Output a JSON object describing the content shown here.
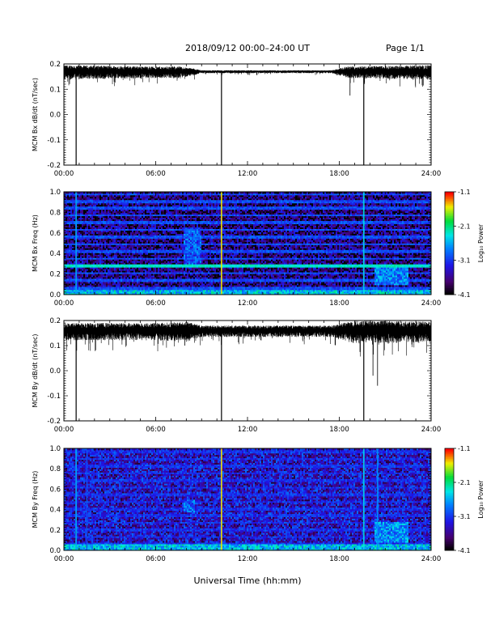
{
  "header": {
    "title": "2018/09/12   00:00–24:00 UT",
    "page": "Page 1/1"
  },
  "xaxis_label": "Universal Time (hh:mm)",
  "colors": {
    "trace": "#000000",
    "frame": "#000000",
    "background": "#ffffff"
  },
  "chart_data": [
    {
      "type": "line",
      "ylabel": "MCM Bx dB/dt (nT/sec)",
      "x_ticks": [
        "00:00",
        "06:00",
        "12:00",
        "18:00",
        "24:00"
      ],
      "xlim": [
        0,
        24
      ],
      "ylim": [
        -0.2,
        0.2
      ],
      "y_ticks": [
        "0.2",
        "0.1",
        "0.0",
        "-0.1",
        "-0.2"
      ],
      "y_tick_values": [
        0.2,
        0.1,
        0.0,
        -0.1,
        -0.2
      ],
      "baseline": 0.17,
      "noise_amplitude": [
        [
          0,
          0.025
        ],
        [
          6,
          0.02
        ],
        [
          7.5,
          0.02
        ],
        [
          8.5,
          0.012
        ],
        [
          9,
          0.005
        ],
        [
          17.5,
          0.005
        ],
        [
          18.5,
          0.02
        ],
        [
          24,
          0.025
        ]
      ],
      "spikes": [
        {
          "x": 0.8,
          "y": -0.2
        },
        {
          "x": 10.3,
          "y": -0.2
        },
        {
          "x": 19.6,
          "y": -0.2
        },
        {
          "x": 18.7,
          "y": 0.075
        }
      ]
    },
    {
      "type": "heatmap",
      "ylabel": "MCM Bx Freq (Hz)",
      "x_ticks": [
        "00:00",
        "06:00",
        "12:00",
        "18:00",
        "24:00"
      ],
      "xlim": [
        0,
        24
      ],
      "ylim": [
        0,
        1.0
      ],
      "y_ticks": [
        "1.0",
        "0.8",
        "0.6",
        "0.4",
        "0.2",
        "0.0"
      ],
      "y_tick_values": [
        1.0,
        0.8,
        0.6,
        0.4,
        0.2,
        0.0
      ],
      "colorbar_label": "Log₁₀ Power",
      "colorbar_ticks": [
        "-1.1",
        "-2.1",
        "-3.1",
        "-4.1"
      ],
      "colorbar_tick_values": [
        -1.1,
        -2.1,
        -3.1,
        -4.1
      ],
      "colorbar_range": [
        -4.1,
        -1.1
      ],
      "background_power": -3.7,
      "harmonic_lines_hz": [
        0.06,
        0.14,
        0.21,
        0.28,
        0.35,
        0.42,
        0.49,
        0.56,
        0.63,
        0.7,
        0.77,
        0.84,
        0.91,
        0.98
      ],
      "harmonic_power": -3.0,
      "bright_lines_hz": [
        {
          "f": 0.28,
          "power": -2.3
        }
      ],
      "broadband_events_ut": [
        {
          "x": 0.8,
          "power": -2.6
        },
        {
          "x": 10.3,
          "power": -1.5
        },
        {
          "x": 19.6,
          "power": -2.4
        }
      ],
      "activity_patches": [
        {
          "x0": 7.8,
          "x1": 9.0,
          "f0": 0.3,
          "f1": 0.65,
          "power": -3.0
        },
        {
          "x0": 20.3,
          "x1": 22.5,
          "f0": 0.1,
          "f1": 0.28,
          "power": -2.8
        },
        {
          "x0": 0,
          "x1": 24,
          "f0": 0.0,
          "f1": 0.05,
          "power": -2.5
        }
      ]
    },
    {
      "type": "line",
      "ylabel": "MCM By dB/dt (nT/sec)",
      "x_ticks": [
        "00:00",
        "06:00",
        "12:00",
        "18:00",
        "24:00"
      ],
      "xlim": [
        0,
        24
      ],
      "ylim": [
        -0.2,
        0.2
      ],
      "y_ticks": [
        "0.2",
        "0.1",
        "0.0",
        "-0.1",
        "-0.2"
      ],
      "y_tick_values": [
        0.2,
        0.1,
        0.0,
        -0.1,
        -0.2
      ],
      "baseline": 0.16,
      "noise_amplitude": [
        [
          0,
          0.03
        ],
        [
          6,
          0.03
        ],
        [
          8,
          0.035
        ],
        [
          9,
          0.02
        ],
        [
          12,
          0.02
        ],
        [
          17.5,
          0.02
        ],
        [
          19,
          0.04
        ],
        [
          24,
          0.035
        ]
      ],
      "spikes": [
        {
          "x": 0.8,
          "y": -0.2
        },
        {
          "x": 10.3,
          "y": -0.2
        },
        {
          "x": 19.6,
          "y": -0.2
        },
        {
          "x": 20.5,
          "y": -0.06
        },
        {
          "x": 20.2,
          "y": -0.02
        },
        {
          "x": 7.9,
          "y": 0.1
        }
      ]
    },
    {
      "type": "heatmap",
      "ylabel": "MCM By Freq (Hz)",
      "x_ticks": [
        "00:00",
        "06:00",
        "12:00",
        "18:00",
        "24:00"
      ],
      "xlim": [
        0,
        24
      ],
      "ylim": [
        0,
        1.0
      ],
      "y_ticks": [
        "1.0",
        "0.8",
        "0.6",
        "0.4",
        "0.2",
        "0.0"
      ],
      "y_tick_values": [
        1.0,
        0.8,
        0.6,
        0.4,
        0.2,
        0.0
      ],
      "colorbar_label": "Log₁₀ Power",
      "colorbar_ticks": [
        "-1.1",
        "-2.1",
        "-3.1",
        "-4.1"
      ],
      "colorbar_tick_values": [
        -1.1,
        -2.1,
        -3.1,
        -4.1
      ],
      "colorbar_range": [
        -4.1,
        -1.1
      ],
      "background_power": -3.4,
      "harmonic_lines_hz": [
        0.06,
        0.13,
        0.2,
        0.27,
        0.34,
        0.41,
        0.48,
        0.55,
        0.62,
        0.69,
        0.76,
        0.83,
        0.9,
        0.97
      ],
      "harmonic_power": -3.2,
      "bright_lines_hz": [],
      "broadband_events_ut": [
        {
          "x": 0.8,
          "power": -2.6
        },
        {
          "x": 1.5,
          "power": -3.0
        },
        {
          "x": 10.3,
          "power": -1.5
        },
        {
          "x": 19.6,
          "power": -2.4
        },
        {
          "x": 20.5,
          "power": -2.7
        }
      ],
      "activity_patches": [
        {
          "x0": 7.8,
          "x1": 8.6,
          "f0": 0.38,
          "f1": 0.5,
          "power": -2.9
        },
        {
          "x0": 20.3,
          "x1": 22.5,
          "f0": 0.08,
          "f1": 0.28,
          "power": -2.7
        },
        {
          "x0": 0,
          "x1": 24,
          "f0": 0.0,
          "f1": 0.06,
          "power": -2.5
        }
      ]
    }
  ]
}
